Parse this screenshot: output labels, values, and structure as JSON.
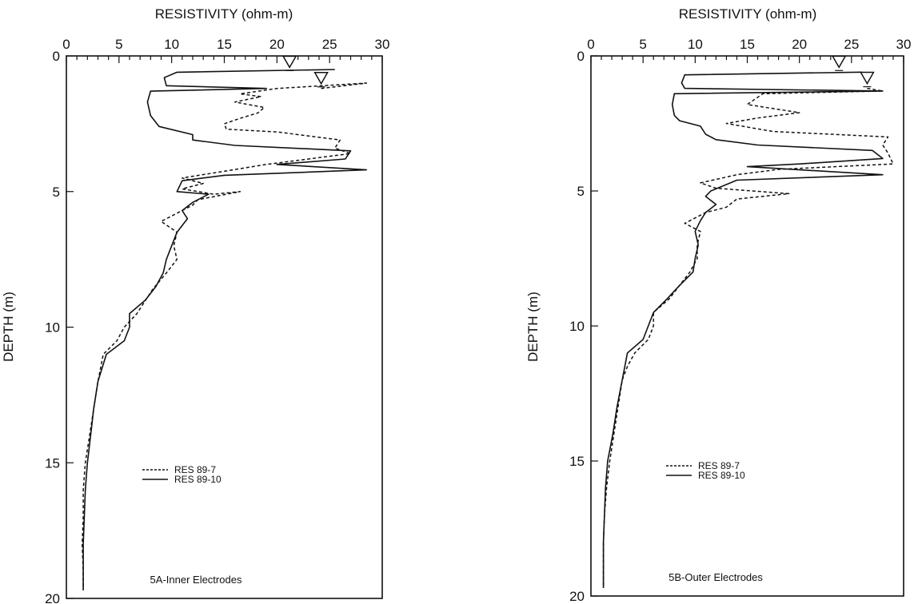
{
  "chart_data": [
    {
      "type": "line",
      "panel": "5A-Inner Electrodes",
      "xlabel": "RESISTIVITY (ohm-m)",
      "ylabel": "DEPTH (m)",
      "xlim": [
        0,
        30
      ],
      "ylim": [
        0,
        20
      ],
      "y_inverted": true,
      "x_axis_position": "top",
      "x_ticks": [
        "0",
        "5",
        "10",
        "15",
        "20",
        "25",
        "30"
      ],
      "y_ticks": [
        "0",
        "5",
        "10",
        "15",
        "20"
      ],
      "legend_position": "lower-center",
      "annotation": "5A-Inner Electrodes",
      "water_table_markers": [
        {
          "x": 21.2,
          "y": 0.6
        },
        {
          "x": 24.2,
          "y": 1.2
        }
      ],
      "series": [
        {
          "name": "RES 89-7",
          "style": "dashed",
          "points": [
            [
              24.2,
              1.2
            ],
            [
              28.5,
              1.0
            ],
            [
              20,
              1.2
            ],
            [
              16.5,
              1.4
            ],
            [
              18.5,
              1.5
            ],
            [
              16,
              1.7
            ],
            [
              18.8,
              1.9
            ],
            [
              18.2,
              2.1
            ],
            [
              16.5,
              2.3
            ],
            [
              15,
              2.5
            ],
            [
              15.2,
              2.7
            ],
            [
              20,
              2.8
            ],
            [
              26,
              3.1
            ],
            [
              25.5,
              3.4
            ],
            [
              27,
              3.6
            ],
            [
              19,
              4.0
            ],
            [
              11,
              4.5
            ],
            [
              13,
              4.7
            ],
            [
              11,
              4.9
            ],
            [
              14,
              5.1
            ],
            [
              16.5,
              5.0
            ],
            [
              12.5,
              5.3
            ],
            [
              12,
              5.5
            ],
            [
              11,
              5.7
            ],
            [
              10,
              5.9
            ],
            [
              9,
              6.1
            ],
            [
              10.5,
              6.5
            ],
            [
              10.2,
              7.0
            ],
            [
              10.5,
              7.5
            ],
            [
              9.5,
              8.0
            ],
            [
              8.2,
              8.6
            ],
            [
              6.7,
              9.5
            ],
            [
              5.5,
              10.0
            ],
            [
              4.8,
              10.5
            ],
            [
              3.5,
              11.0
            ],
            [
              3,
              12.0
            ],
            [
              2.6,
              13.0
            ],
            [
              2.2,
              14.0
            ],
            [
              1.8,
              15.0
            ],
            [
              1.6,
              16.0
            ],
            [
              1.6,
              17.0
            ],
            [
              1.5,
              18.0
            ],
            [
              1.6,
              19.0
            ],
            [
              1.6,
              19.7
            ]
          ]
        },
        {
          "name": "RES 89-10",
          "style": "solid",
          "points": [
            [
              25.5,
              0.5
            ],
            [
              10.5,
              0.6
            ],
            [
              9.3,
              0.8
            ],
            [
              9.5,
              1.1
            ],
            [
              19,
              1.2
            ],
            [
              8,
              1.3
            ],
            [
              7.7,
              1.7
            ],
            [
              8,
              2.2
            ],
            [
              8.8,
              2.6
            ],
            [
              12,
              2.9
            ],
            [
              12,
              3.1
            ],
            [
              16,
              3.3
            ],
            [
              27,
              3.5
            ],
            [
              26.5,
              3.8
            ],
            [
              20,
              4.0
            ],
            [
              28.5,
              4.2
            ],
            [
              15,
              4.4
            ],
            [
              11,
              4.6
            ],
            [
              10.5,
              5.0
            ],
            [
              13.5,
              5.1
            ],
            [
              12,
              5.4
            ],
            [
              11,
              5.7
            ],
            [
              11.5,
              6.0
            ],
            [
              10.5,
              6.5
            ],
            [
              10,
              7.0
            ],
            [
              9.5,
              7.5
            ],
            [
              9.2,
              8.0
            ],
            [
              8.5,
              8.5
            ],
            [
              7.5,
              9.0
            ],
            [
              6,
              9.5
            ],
            [
              6,
              10.0
            ],
            [
              5.5,
              10.5
            ],
            [
              3.8,
              11.0
            ],
            [
              3,
              12.0
            ],
            [
              2.6,
              13.0
            ],
            [
              2.3,
              14.0
            ],
            [
              2,
              15.0
            ],
            [
              1.8,
              16.0
            ],
            [
              1.7,
              17.0
            ],
            [
              1.6,
              18.0
            ],
            [
              1.6,
              19.0
            ],
            [
              1.6,
              19.7
            ]
          ]
        }
      ]
    },
    {
      "type": "line",
      "panel": "5B-Outer Electrodes",
      "xlabel": "RESISTIVITY (ohm-m)",
      "ylabel": "DEPTH (m)",
      "xlim": [
        0,
        30
      ],
      "ylim": [
        0,
        20
      ],
      "y_inverted": true,
      "x_axis_position": "top",
      "x_ticks": [
        "0",
        "5",
        "10",
        "15",
        "20",
        "25",
        "30"
      ],
      "y_ticks": [
        "0",
        "5",
        "10",
        "15",
        "20"
      ],
      "legend_position": "lower-center",
      "annotation": "5B-Outer Electrodes",
      "water_table_markers": [
        {
          "x": 23.8,
          "y": 0.6
        },
        {
          "x": 26.5,
          "y": 1.2
        }
      ],
      "series": [
        {
          "name": "RES 89-7",
          "style": "dashed",
          "points": [
            [
              26.5,
              1.2
            ],
            [
              28,
              1.3
            ],
            [
              16.5,
              1.4
            ],
            [
              15,
              1.8
            ],
            [
              20,
              2.1
            ],
            [
              16,
              2.3
            ],
            [
              13,
              2.5
            ],
            [
              16,
              2.7
            ],
            [
              17.5,
              2.8
            ],
            [
              28.5,
              3.0
            ],
            [
              28,
              3.3
            ],
            [
              28.5,
              3.6
            ],
            [
              29,
              4.0
            ],
            [
              18,
              4.2
            ],
            [
              14,
              4.4
            ],
            [
              10.5,
              4.7
            ],
            [
              12,
              4.9
            ],
            [
              19,
              5.1
            ],
            [
              14,
              5.3
            ],
            [
              13,
              5.6
            ],
            [
              11,
              5.8
            ],
            [
              10,
              6.0
            ],
            [
              9,
              6.2
            ],
            [
              10.5,
              6.5
            ],
            [
              10.2,
              7.0
            ],
            [
              10.2,
              7.5
            ],
            [
              9.5,
              8.0
            ],
            [
              8.5,
              8.5
            ],
            [
              7.5,
              9.0
            ],
            [
              6,
              9.5
            ],
            [
              6,
              10.0
            ],
            [
              5.5,
              10.5
            ],
            [
              4.2,
              11.0
            ],
            [
              3.5,
              11.5
            ],
            [
              3,
              12.0
            ],
            [
              2.6,
              13.0
            ],
            [
              2.2,
              14.0
            ],
            [
              1.8,
              15.0
            ],
            [
              1.5,
              16.0
            ],
            [
              1.3,
              17.0
            ],
            [
              1.2,
              18.0
            ],
            [
              1.2,
              19.0
            ],
            [
              1.2,
              19.7
            ]
          ]
        },
        {
          "name": "RES 89-10",
          "style": "solid",
          "points": [
            [
              26,
              0.6
            ],
            [
              9,
              0.7
            ],
            [
              8.7,
              1.0
            ],
            [
              9,
              1.2
            ],
            [
              28,
              1.3
            ],
            [
              8,
              1.4
            ],
            [
              7.8,
              1.8
            ],
            [
              8,
              2.2
            ],
            [
              8.5,
              2.4
            ],
            [
              10.5,
              2.6
            ],
            [
              11,
              2.9
            ],
            [
              12,
              3.1
            ],
            [
              16,
              3.3
            ],
            [
              27,
              3.5
            ],
            [
              28,
              3.8
            ],
            [
              20,
              4.0
            ],
            [
              15,
              4.1
            ],
            [
              28,
              4.4
            ],
            [
              14,
              4.6
            ],
            [
              11.5,
              5.0
            ],
            [
              11,
              5.2
            ],
            [
              12,
              5.5
            ],
            [
              11,
              5.8
            ],
            [
              10.5,
              6.1
            ],
            [
              10,
              6.5
            ],
            [
              10.3,
              7.0
            ],
            [
              10,
              7.5
            ],
            [
              9.8,
              8.0
            ],
            [
              8.5,
              8.5
            ],
            [
              7.3,
              9.0
            ],
            [
              6,
              9.5
            ],
            [
              5.5,
              10.0
            ],
            [
              5,
              10.5
            ],
            [
              3.5,
              11.0
            ],
            [
              3,
              12.0
            ],
            [
              2.5,
              13.0
            ],
            [
              2.1,
              14.0
            ],
            [
              1.6,
              15.0
            ],
            [
              1.4,
              16.0
            ],
            [
              1.3,
              17.0
            ],
            [
              1.2,
              18.0
            ],
            [
              1.2,
              19.0
            ],
            [
              1.2,
              19.7
            ]
          ]
        }
      ]
    }
  ]
}
